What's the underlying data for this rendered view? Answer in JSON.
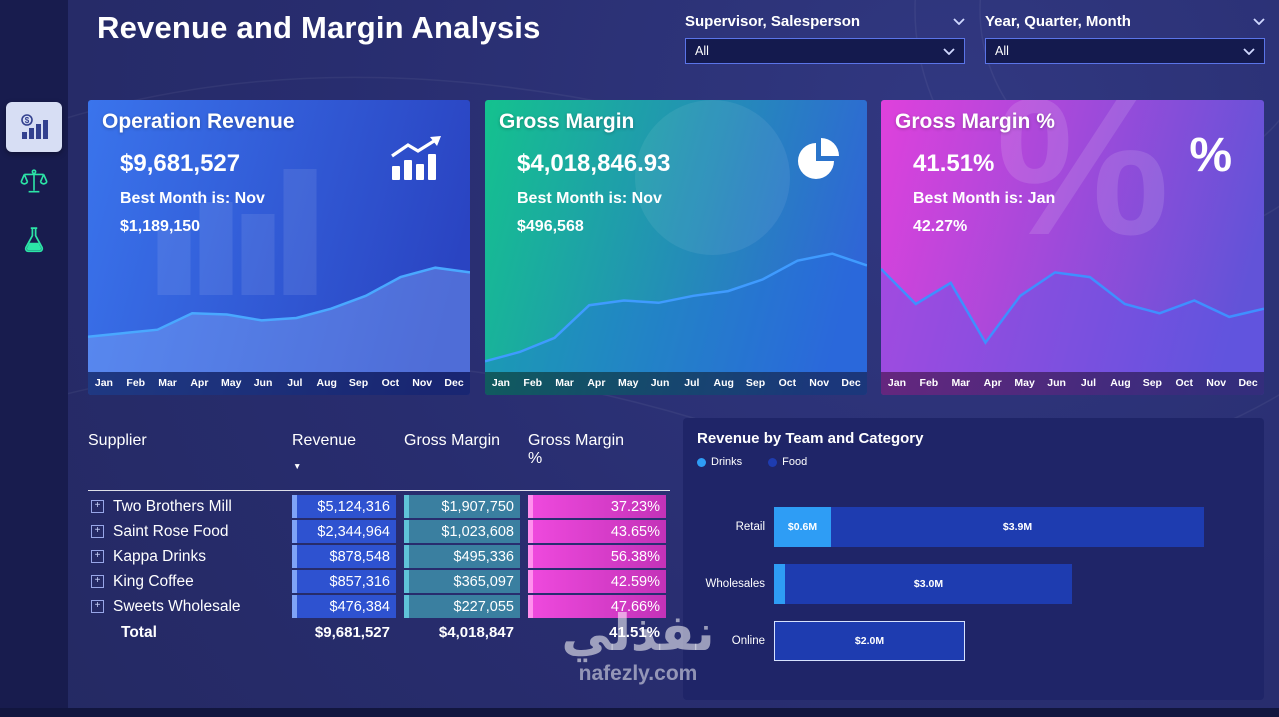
{
  "page": {
    "title": "Revenue and Margin Analysis"
  },
  "watermark": {
    "logo_text": "نفذلي",
    "site": "nafezly.com"
  },
  "filters": [
    {
      "label": "Supervisor, Salesperson",
      "value": "All"
    },
    {
      "label": "Year, Quarter, Month",
      "value": "All"
    }
  ],
  "months": [
    "Jan",
    "Feb",
    "Mar",
    "Apr",
    "May",
    "Jun",
    "Jul",
    "Aug",
    "Sep",
    "Oct",
    "Nov",
    "Dec"
  ],
  "kpi_cards": [
    {
      "title": "Operation Revenue",
      "value": "$9,681,527",
      "best_label": "Best Month is: Nov",
      "best_value": "$1,189,150",
      "icon": "bar-chart-icon",
      "bg_from": "#3a74ec",
      "bg_to": "#2a44c2",
      "line_color": "#49a8ff",
      "area_fill": "rgba(150,185,255,0.35)",
      "trend": [
        0.25,
        0.28,
        0.31,
        0.45,
        0.44,
        0.39,
        0.41,
        0.49,
        0.6,
        0.76,
        0.84,
        0.8
      ]
    },
    {
      "title": "Gross Margin",
      "value": "$4,018,846.93",
      "best_label": "Best Month is: Nov",
      "best_value": "$496,568",
      "icon": "pie-chart-icon",
      "bg_from": "#14c28e",
      "bg_to": "#2f66d6",
      "line_color": "#3f9bff",
      "area_fill": "rgba(35,110,230,0.35)",
      "trend": [
        0.04,
        0.12,
        0.24,
        0.52,
        0.56,
        0.54,
        0.6,
        0.64,
        0.74,
        0.9,
        0.96,
        0.86
      ]
    },
    {
      "title": "Gross Margin %",
      "value": "41.51%",
      "best_label": "Best Month is: Jan",
      "best_value": "42.27%",
      "icon": "percent-icon",
      "icon_glyph": "%",
      "bg_from": "#df41dc",
      "bg_to": "#6253d8",
      "line_color": "#3f8fff",
      "area_fill": "rgba(95,85,230,0.42)",
      "trend": [
        0.83,
        0.53,
        0.71,
        0.2,
        0.6,
        0.8,
        0.76,
        0.53,
        0.45,
        0.56,
        0.42,
        0.49
      ]
    }
  ],
  "table": {
    "columns": [
      "Supplier",
      "Revenue",
      "Gross Margin",
      "Gross Margin %"
    ],
    "sort_icon": "▼",
    "expand_icon": "+",
    "rows": [
      {
        "supplier": "Two Brothers Mill",
        "revenue": "$5,124,316",
        "gross_margin": "$1,907,750",
        "gross_margin_pct": "37.23%"
      },
      {
        "supplier": "Saint Rose Food",
        "revenue": "$2,344,964",
        "gross_margin": "$1,023,608",
        "gross_margin_pct": "43.65%"
      },
      {
        "supplier": "Kappa Drinks",
        "revenue": "$878,548",
        "gross_margin": "$495,336",
        "gross_margin_pct": "56.38%"
      },
      {
        "supplier": "King Coffee",
        "revenue": "$857,316",
        "gross_margin": "$365,097",
        "gross_margin_pct": "42.59%"
      },
      {
        "supplier": "Sweets Wholesale",
        "revenue": "$476,384",
        "gross_margin": "$227,055",
        "gross_margin_pct": "47.66%"
      }
    ],
    "total": {
      "supplier": "Total",
      "revenue": "$9,681,527",
      "gross_margin": "$4,018,847",
      "gross_margin_pct": "41.51%"
    },
    "cell_colors": {
      "revenue": "#2e52d0",
      "gross_margin": "#3a7fa0",
      "gross_margin_pct": "#e33fd2"
    }
  },
  "bar_chart": {
    "type": "stacked-bar-horizontal",
    "title": "Revenue by Team and Category",
    "legend": [
      {
        "label": "Drinks",
        "color": "#2e9df5"
      },
      {
        "label": "Food",
        "color": "#1e3cb0"
      }
    ],
    "rows": [
      {
        "category": "Retail",
        "segments": [
          {
            "series": "Drinks",
            "label": "$0.6M",
            "value": 0.6
          },
          {
            "series": "Food",
            "label": "$3.9M",
            "value": 3.9
          }
        ]
      },
      {
        "category": "Wholesales",
        "segments": [
          {
            "series": "Drinks",
            "label": "",
            "value": 0.12
          },
          {
            "series": "Food",
            "label": "$3.0M",
            "value": 3.0
          }
        ]
      },
      {
        "category": "Online",
        "segments": [
          {
            "series": "Food",
            "label": "$2.0M",
            "value": 2.0,
            "highlight": true
          }
        ]
      }
    ]
  }
}
